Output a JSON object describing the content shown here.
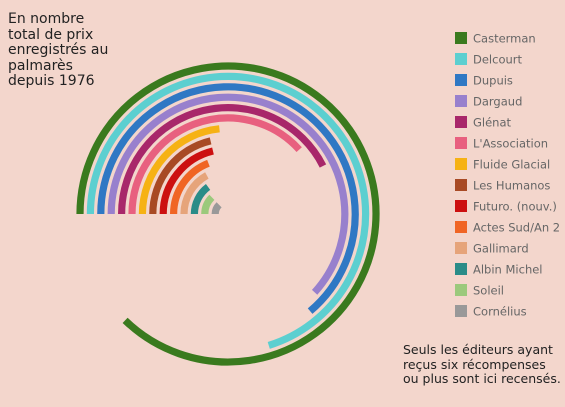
{
  "chart_data": {
    "type": "radial-bar",
    "title": "En nombre total de prix enregistrés au palmarès depuis 1976",
    "note": "Seuls les éditeurs ayant reçus six récompenses ou plus sont ici recensés.",
    "legend_position": "right",
    "series": [
      {
        "name": "Casterman",
        "value": 41,
        "color": "#3a7a1e"
      },
      {
        "name": "Delcourt",
        "value": 33,
        "color": "#5ccfd0"
      },
      {
        "name": "Dupuis",
        "value": 30,
        "color": "#2f78c4"
      },
      {
        "name": "Dargaud",
        "value": 29,
        "color": "#9880cd"
      },
      {
        "name": "Glénat",
        "value": 20,
        "color": "#a8276a"
      },
      {
        "name": "L'Association",
        "value": 18,
        "color": "#e8607f"
      },
      {
        "name": "Fluide Glacial",
        "value": 11,
        "color": "#f6b214"
      },
      {
        "name": "Les Humanos",
        "value": 10,
        "color": "#a84a24"
      },
      {
        "name": "Futuro. (nouv.)",
        "value": 10,
        "color": "#cc1010"
      },
      {
        "name": "Actes Sud/An 2",
        "value": 9,
        "color": "#f06524"
      },
      {
        "name": "Gallimard",
        "value": 8,
        "color": "#e6a47a"
      },
      {
        "name": "Albin Michel",
        "value": 7,
        "color": "#2a8c88"
      },
      {
        "name": "Soleil",
        "value": 6,
        "color": "#9bc97c"
      },
      {
        "name": "Cornélius",
        "value": 6,
        "color": "#999999"
      }
    ]
  }
}
